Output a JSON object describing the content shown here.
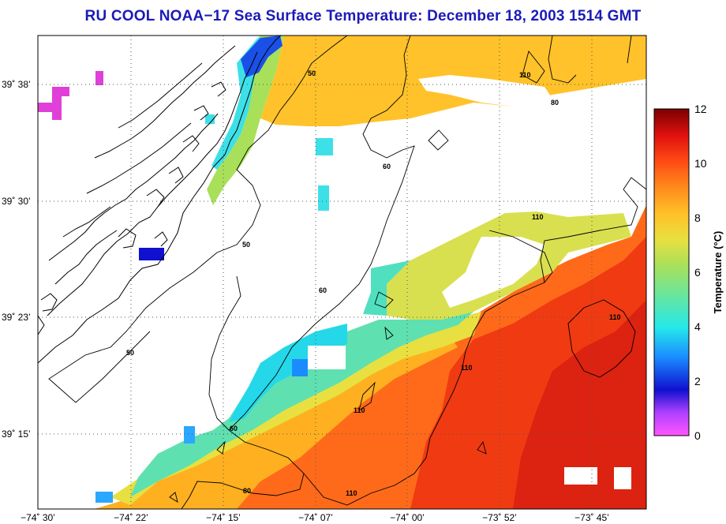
{
  "title": "RU COOL  NOAA−17  Sea Surface Temperature:  December 18, 2003 1514 GMT",
  "axes": {
    "lon_ticks": [
      "−74˚ 30’",
      "−74˚ 22’",
      "−74˚ 15’",
      "−74˚ 07’",
      "−74˚ 00’",
      "−73˚ 52’",
      "−73˚ 45’"
    ],
    "lat_ticks": [
      "39˚ 38’",
      "39˚ 30’",
      "39˚ 23’",
      "39˚ 15’"
    ]
  },
  "colorbar": {
    "label": "Temperature (°C)",
    "ticks": [
      "12",
      "10",
      "8",
      "6",
      "4",
      "2",
      "0"
    ],
    "range": [
      0,
      12
    ]
  },
  "contour_labels": {
    "c1": "50",
    "c2": "50",
    "c3": "50",
    "c4": "60",
    "c5": "60",
    "c6": "80",
    "c7": "60",
    "c8": "110",
    "c9": "110",
    "c10": "110",
    "c11": "110",
    "c12": "110",
    "c13": "80",
    "c14": "110"
  },
  "colors": {
    "title": "#1b1bb8",
    "land_outline": "#000000",
    "grid": "#555555"
  }
}
